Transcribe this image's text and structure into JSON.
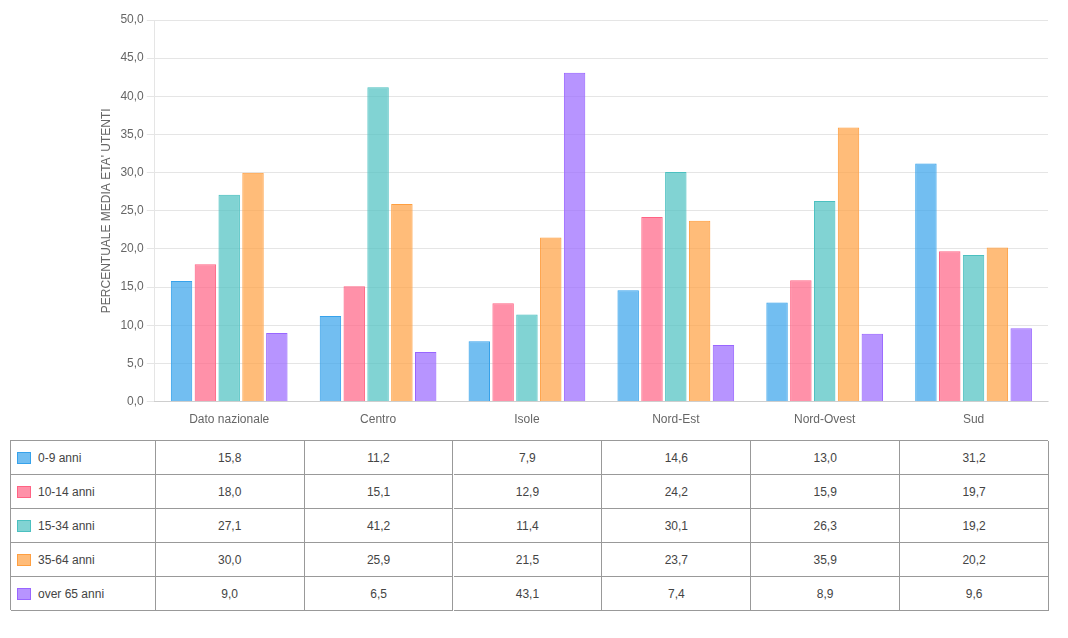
{
  "chart_data": {
    "type": "bar",
    "categories": [
      "Dato nazionale",
      "Centro",
      "Isole",
      "Nord-Est",
      "Nord-Ovest",
      "Sud"
    ],
    "series": [
      {
        "name": "0-9 anni",
        "values": [
          15.8,
          11.2,
          7.9,
          14.6,
          13.0,
          31.2
        ],
        "value_labels": [
          "15,8",
          "11,2",
          "7,9",
          "14,6",
          "13,0",
          "31,2"
        ]
      },
      {
        "name": "10-14 anni",
        "values": [
          18.0,
          15.1,
          12.9,
          24.2,
          15.9,
          19.7
        ],
        "value_labels": [
          "18,0",
          "15,1",
          "12,9",
          "24,2",
          "15,9",
          "19,7"
        ]
      },
      {
        "name": "15-34 anni",
        "values": [
          27.1,
          41.2,
          11.4,
          30.1,
          26.3,
          19.2
        ],
        "value_labels": [
          "27,1",
          "41,2",
          "11,4",
          "30,1",
          "26,3",
          "19,2"
        ]
      },
      {
        "name": "35-64 anni",
        "values": [
          30.0,
          25.9,
          21.5,
          23.7,
          35.9,
          20.2
        ],
        "value_labels": [
          "30,0",
          "25,9",
          "21,5",
          "23,7",
          "35,9",
          "20,2"
        ]
      },
      {
        "name": "over 65 anni",
        "values": [
          9.0,
          6.5,
          43.1,
          7.4,
          8.9,
          9.6
        ],
        "value_labels": [
          "9,0",
          "6,5",
          "43,1",
          "7,4",
          "8,9",
          "9,6"
        ]
      }
    ],
    "ylabel": "PERCENTUALE MEDIA ETA' UTENTI",
    "ylim": [
      0,
      50
    ],
    "yticks": [
      {
        "value": 0,
        "label": "0,0"
      },
      {
        "value": 5,
        "label": "5,0"
      },
      {
        "value": 10,
        "label": "10,0"
      },
      {
        "value": 15,
        "label": "15,0"
      },
      {
        "value": 20,
        "label": "20,0"
      },
      {
        "value": 25,
        "label": "25,0"
      },
      {
        "value": 30,
        "label": "30,0"
      },
      {
        "value": 35,
        "label": "35,0"
      },
      {
        "value": 40,
        "label": "40,0"
      },
      {
        "value": 45,
        "label": "45,0"
      },
      {
        "value": 50,
        "label": "50,0"
      }
    ],
    "grid": true
  }
}
